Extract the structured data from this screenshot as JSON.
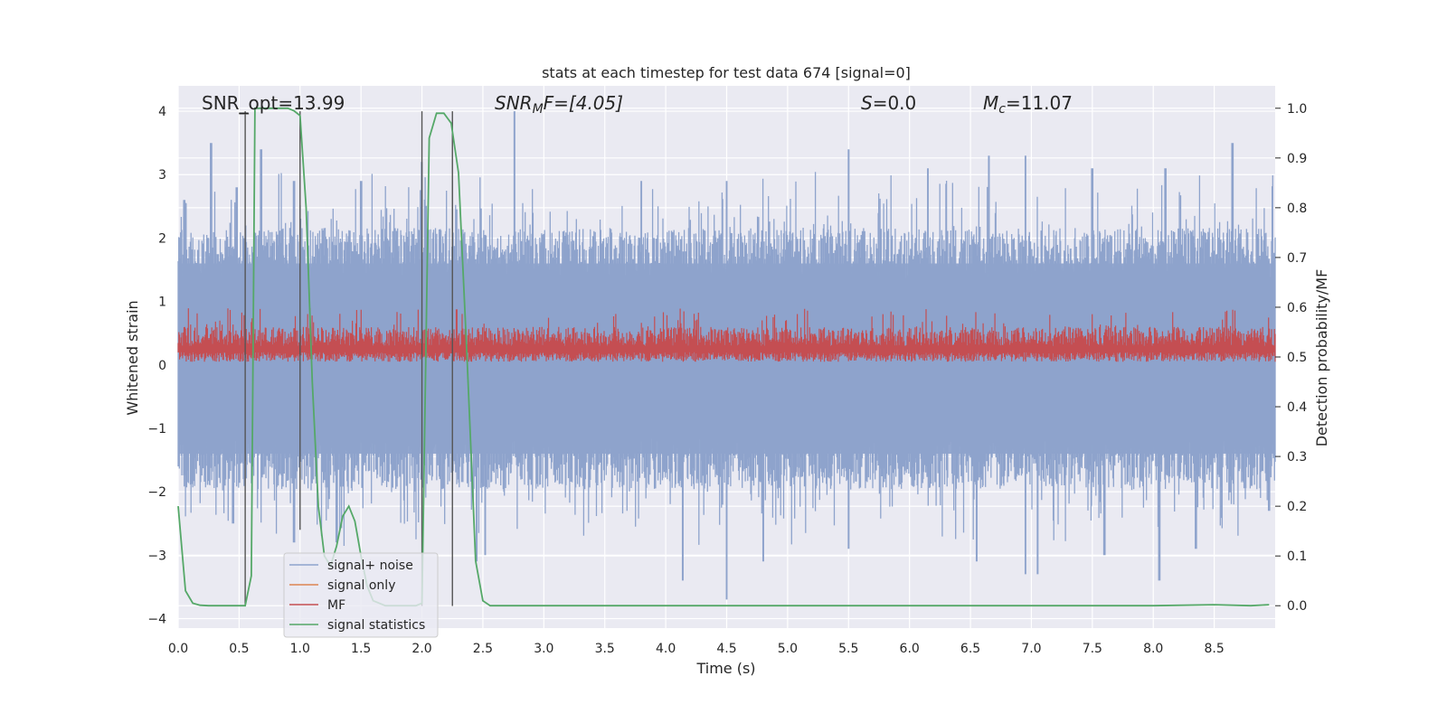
{
  "chart_data": {
    "type": "line",
    "title": "stats at each timestep for test data 674 [signal=0]",
    "xlabel": "Time (s)",
    "ylabel_left": "Whitened strain",
    "ylabel_right": "Detection probability/MF",
    "xlim": [
      0.0,
      9.0
    ],
    "ylim_left": [
      -4.15,
      4.4
    ],
    "ylim_right": [
      -0.045,
      1.045
    ],
    "x_ticks": [
      0.0,
      0.5,
      1.0,
      1.5,
      2.0,
      2.5,
      3.0,
      3.5,
      4.0,
      4.5,
      5.0,
      5.5,
      6.0,
      6.5,
      7.0,
      7.5,
      8.0,
      8.5
    ],
    "x_tick_labels": [
      "0.0",
      "0.5",
      "1.0",
      "1.5",
      "2.0",
      "2.5",
      "3.0",
      "3.5",
      "4.0",
      "4.5",
      "5.0",
      "5.5",
      "6.0",
      "6.5",
      "7.0",
      "7.5",
      "8.0",
      "8.5"
    ],
    "y_ticks_left": [
      -4,
      -3,
      -2,
      -1,
      0,
      1,
      2,
      3,
      4
    ],
    "y_tick_labels_left": [
      "−4",
      "−3",
      "−2",
      "−1",
      "0",
      "1",
      "2",
      "3",
      "4"
    ],
    "y_ticks_right": [
      0.0,
      0.1,
      0.2,
      0.3,
      0.4,
      0.5,
      0.6,
      0.7,
      0.8,
      0.9,
      1.0
    ],
    "y_tick_labels_right": [
      "0.0",
      "0.1",
      "0.2",
      "0.3",
      "0.4",
      "0.5",
      "0.6",
      "0.7",
      "0.8",
      "0.9",
      "1.0"
    ],
    "grid": true,
    "legend_position": "lower-left",
    "annotations": {
      "snr_opt": "SNR_opt=13.99",
      "snr_mf_name": "SNR",
      "snr_mf_sub": "M",
      "snr_mf_rest": "F=[4.05]",
      "s_name": "S",
      "s_rest": "=0.0",
      "mc_name": "M",
      "mc_sub": "c",
      "mc_rest": "=11.07"
    },
    "series": [
      {
        "name": "signal+ noise",
        "axis": "left",
        "color": "#8ea3cc",
        "style": "noise band",
        "x_range": [
          0.0,
          9.0
        ],
        "typical_range": [
          -1.4,
          1.6
        ],
        "peaks_high": [
          [
            0.05,
            2.6
          ],
          [
            0.27,
            3.5
          ],
          [
            0.48,
            2.8
          ],
          [
            0.68,
            3.4
          ],
          [
            0.95,
            2.9
          ],
          [
            1.5,
            2.9
          ],
          [
            2.0,
            3.2
          ],
          [
            2.76,
            4.0
          ],
          [
            3.8,
            2.9
          ],
          [
            4.5,
            2.9
          ],
          [
            5.5,
            3.4
          ],
          [
            6.15,
            3.1
          ],
          [
            6.65,
            3.3
          ],
          [
            6.95,
            3.3
          ],
          [
            7.5,
            3.1
          ],
          [
            8.1,
            3.1
          ],
          [
            8.65,
            3.5
          ]
        ],
        "peaks_low": [
          [
            0.0,
            -1.6
          ],
          [
            0.45,
            -2.5
          ],
          [
            0.95,
            -2.8
          ],
          [
            1.3,
            -2.8
          ],
          [
            2.45,
            -3.1
          ],
          [
            2.52,
            -3.0
          ],
          [
            4.14,
            -3.4
          ],
          [
            4.5,
            -3.7
          ],
          [
            4.8,
            -3.1
          ],
          [
            5.5,
            -2.9
          ],
          [
            6.55,
            -3.1
          ],
          [
            6.95,
            -3.3
          ],
          [
            7.05,
            -3.3
          ],
          [
            7.6,
            -3.0
          ],
          [
            8.05,
            -3.4
          ],
          [
            8.35,
            -2.9
          ],
          [
            8.95,
            -2.3
          ]
        ]
      },
      {
        "name": "signal only",
        "axis": "left",
        "color": "#dd8452",
        "x": [],
        "y": []
      },
      {
        "name": "MF",
        "axis": "left",
        "color": "#c44e52",
        "style": "noise band",
        "x_range": [
          0.0,
          9.0
        ],
        "typical_range": [
          0.05,
          0.6
        ],
        "peak_max": 0.9
      },
      {
        "name": "signal statistics",
        "axis": "right",
        "color": "#55a868",
        "x": [
          0.0,
          0.06,
          0.12,
          0.18,
          0.25,
          0.35,
          0.45,
          0.5,
          0.55,
          0.6,
          0.63,
          0.7,
          0.8,
          0.9,
          0.95,
          1.0,
          1.05,
          1.1,
          1.15,
          1.2,
          1.25,
          1.3,
          1.35,
          1.4,
          1.45,
          1.5,
          1.55,
          1.6,
          1.7,
          1.8,
          1.9,
          1.95,
          2.0,
          2.06,
          2.12,
          2.18,
          2.24,
          2.3,
          2.37,
          2.44,
          2.5,
          2.56,
          2.65,
          3.0,
          4.0,
          5.0,
          6.0,
          7.0,
          8.0,
          8.5,
          8.8,
          8.95
        ],
        "y": [
          0.2,
          0.03,
          0.005,
          0.001,
          0.0,
          0.0,
          0.0,
          0.0,
          0.0,
          0.06,
          1.0,
          1.0,
          1.0,
          1.0,
          0.995,
          0.985,
          0.8,
          0.45,
          0.2,
          0.1,
          0.08,
          0.12,
          0.18,
          0.2,
          0.17,
          0.1,
          0.04,
          0.01,
          0.0,
          0.0,
          0.0,
          0.0,
          0.005,
          0.94,
          0.99,
          0.99,
          0.97,
          0.87,
          0.5,
          0.09,
          0.01,
          0.0,
          0.0,
          0.0,
          0.0,
          0.0,
          0.0,
          0.0,
          0.0,
          0.002,
          0.0,
          0.002
        ]
      }
    ],
    "vertical_markers": [
      {
        "x": 0.55,
        "y_top": 4.0,
        "y_bottom": -3.8
      },
      {
        "x": 1.0,
        "y_top": 4.0,
        "y_bottom": -2.6
      },
      {
        "x": 2.0,
        "y_top": 4.0,
        "y_bottom": -3.8
      },
      {
        "x": 2.25,
        "y_top": 4.0,
        "y_bottom": -3.8
      }
    ]
  }
}
